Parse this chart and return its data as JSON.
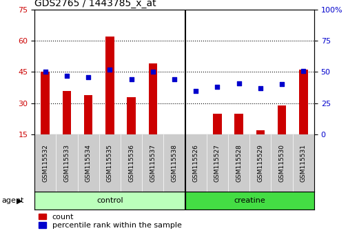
{
  "title": "GDS2765 / 1443785_x_at",
  "categories": [
    "GSM115532",
    "GSM115533",
    "GSM115534",
    "GSM115535",
    "GSM115536",
    "GSM115537",
    "GSM115538",
    "GSM115526",
    "GSM115527",
    "GSM115528",
    "GSM115529",
    "GSM115530",
    "GSM115531"
  ],
  "counts": [
    45,
    36,
    34,
    62,
    33,
    49,
    15,
    15,
    25,
    25,
    17,
    29,
    46
  ],
  "percentiles": [
    50,
    47,
    46,
    52,
    44,
    50,
    44,
    35,
    38,
    41,
    37,
    40,
    51
  ],
  "bar_color": "#cc0000",
  "dot_color": "#0000cc",
  "ylim_left": [
    15,
    75
  ],
  "ylim_right": [
    0,
    100
  ],
  "yticks_left": [
    15,
    30,
    45,
    60,
    75
  ],
  "yticks_right": [
    0,
    25,
    50,
    75,
    100
  ],
  "yticklabels_right": [
    "0",
    "25",
    "50",
    "75",
    "100%"
  ],
  "grid_yticks": [
    30,
    45,
    60
  ],
  "control_color": "#bbffbb",
  "creatine_color": "#44dd44",
  "tick_bg": "#cccccc",
  "bg_color": "#ffffff",
  "separator_idx": 7,
  "bar_width": 0.4,
  "dot_size": 20,
  "title_fontsize": 10,
  "tick_fontsize": 8,
  "label_fontsize": 6.5,
  "legend_fontsize": 8,
  "agent_label": "agent",
  "control_label": "control",
  "creatine_label": "creatine",
  "legend_count": "count",
  "legend_pct": "percentile rank within the sample"
}
